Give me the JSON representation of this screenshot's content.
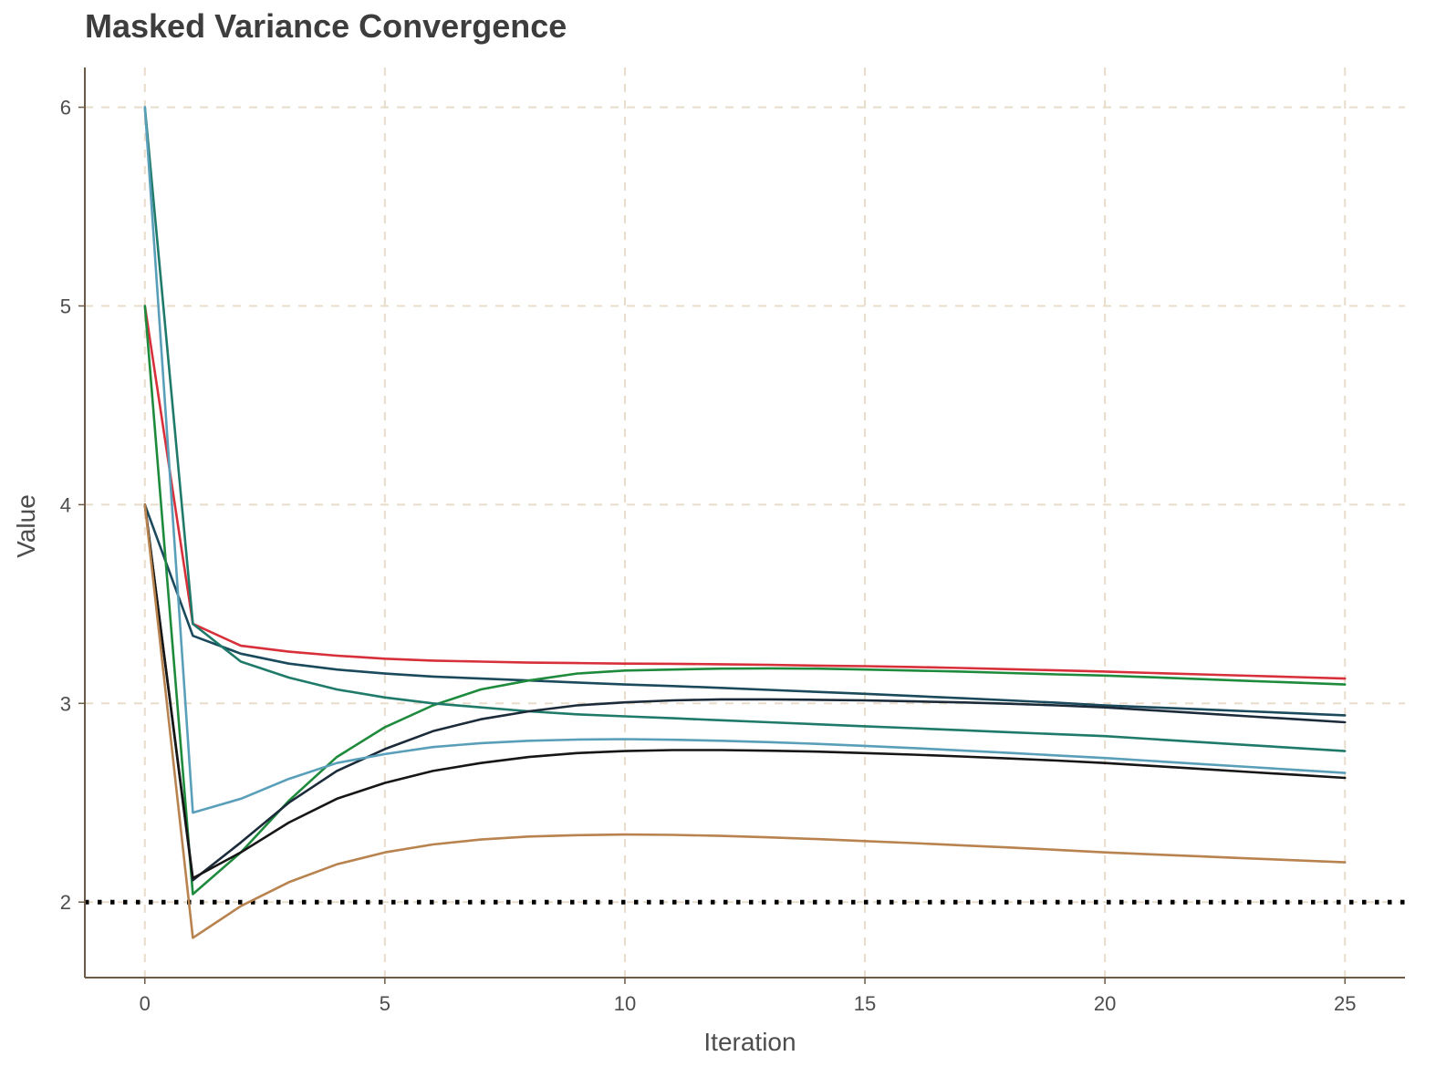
{
  "chart_data": {
    "type": "line",
    "title": "Masked Variance Convergence",
    "xlabel": "Iteration",
    "ylabel": "Value",
    "xlim": [
      -1.25,
      26.25
    ],
    "ylim": [
      1.62,
      6.2
    ],
    "x_ticks": [
      0,
      5,
      10,
      15,
      20,
      25
    ],
    "y_ticks": [
      2,
      3,
      4,
      5,
      6
    ],
    "grid": true,
    "legend": "none",
    "reference_line": {
      "y": 2,
      "style": "dotted",
      "color": "#000000"
    },
    "colors": {
      "grid": "#e8dccb",
      "axis": "#6b5a47",
      "text": "#4d4d4d",
      "title": "#3d3d3d"
    },
    "x": [
      0,
      1,
      2,
      3,
      4,
      5,
      6,
      7,
      8,
      9,
      10,
      11,
      12,
      13,
      14,
      15,
      16,
      17,
      18,
      19,
      20,
      21,
      22,
      23,
      24,
      25
    ],
    "series": [
      {
        "color": "#d7303a",
        "values": [
          5.0,
          3.4,
          3.29,
          3.26,
          3.24,
          3.225,
          3.215,
          3.21,
          3.205,
          3.203,
          3.2,
          3.199,
          3.197,
          3.194,
          3.19,
          3.187,
          3.183,
          3.178,
          3.172,
          3.166,
          3.16,
          3.153,
          3.146,
          3.139,
          3.132,
          3.125
        ]
      },
      {
        "color": "#1a4a5c",
        "values": [
          4.0,
          3.34,
          3.25,
          3.2,
          3.17,
          3.15,
          3.135,
          3.125,
          3.115,
          3.105,
          3.095,
          3.087,
          3.078,
          3.068,
          3.058,
          3.048,
          3.037,
          3.026,
          3.015,
          3.003,
          2.99,
          2.98,
          2.97,
          2.96,
          2.95,
          2.94
        ]
      },
      {
        "color": "#1e8a3c",
        "values": [
          5.0,
          2.04,
          2.25,
          2.51,
          2.73,
          2.88,
          2.99,
          3.07,
          3.115,
          3.15,
          3.165,
          3.17,
          3.175,
          3.176,
          3.175,
          3.17,
          3.165,
          3.16,
          3.153,
          3.146,
          3.14,
          3.131,
          3.122,
          3.113,
          3.104,
          3.095
        ]
      },
      {
        "color": "#1f7a6a",
        "values": [
          6.0,
          3.4,
          3.21,
          3.13,
          3.07,
          3.03,
          3.0,
          2.98,
          2.96,
          2.945,
          2.935,
          2.925,
          2.915,
          2.905,
          2.895,
          2.885,
          2.875,
          2.865,
          2.855,
          2.845,
          2.835,
          2.82,
          2.805,
          2.79,
          2.775,
          2.76
        ]
      },
      {
        "color": "#1c2b3a",
        "values": [
          4.0,
          2.11,
          2.3,
          2.5,
          2.66,
          2.77,
          2.86,
          2.92,
          2.96,
          2.99,
          3.005,
          3.015,
          3.02,
          3.02,
          3.018,
          3.015,
          3.01,
          3.005,
          2.998,
          2.99,
          2.98,
          2.965,
          2.95,
          2.935,
          2.92,
          2.905
        ]
      },
      {
        "color": "#5a9fba",
        "values": [
          6.0,
          2.45,
          2.52,
          2.62,
          2.7,
          2.745,
          2.78,
          2.8,
          2.812,
          2.818,
          2.82,
          2.817,
          2.812,
          2.805,
          2.796,
          2.786,
          2.775,
          2.763,
          2.751,
          2.738,
          2.725,
          2.71,
          2.695,
          2.68,
          2.665,
          2.65
        ]
      },
      {
        "color": "#161616",
        "values": [
          4.0,
          2.12,
          2.25,
          2.4,
          2.52,
          2.6,
          2.66,
          2.7,
          2.73,
          2.75,
          2.76,
          2.765,
          2.765,
          2.762,
          2.757,
          2.75,
          2.742,
          2.733,
          2.723,
          2.712,
          2.7,
          2.685,
          2.67,
          2.655,
          2.64,
          2.625
        ]
      },
      {
        "color": "#b8834f",
        "values": [
          4.0,
          1.82,
          1.98,
          2.1,
          2.19,
          2.25,
          2.29,
          2.315,
          2.33,
          2.337,
          2.34,
          2.338,
          2.333,
          2.326,
          2.317,
          2.307,
          2.297,
          2.286,
          2.275,
          2.263,
          2.25,
          2.24,
          2.23,
          2.22,
          2.21,
          2.2
        ]
      }
    ]
  }
}
